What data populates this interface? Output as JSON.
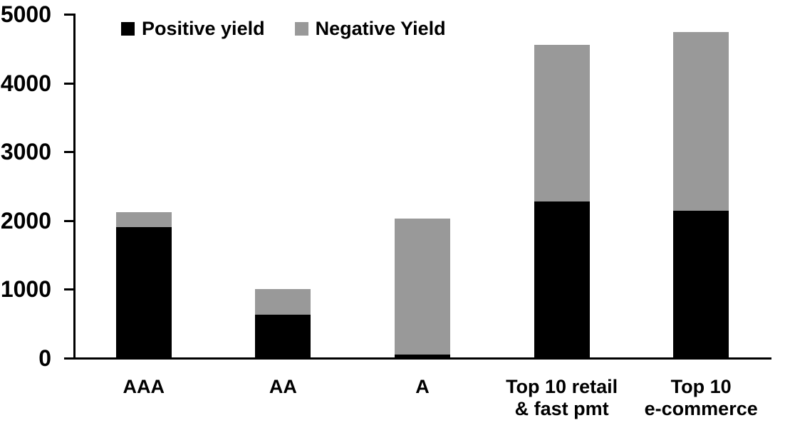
{
  "chart_data": {
    "type": "bar",
    "stacked": true,
    "title": "",
    "xlabel": "",
    "ylabel": "",
    "categories": [
      "AAA",
      "AA",
      "A",
      "Top 10 retail\n& fast pmt",
      "Top 10\ne-commerce"
    ],
    "series": [
      {
        "name": "Positive yield",
        "color": "#000000",
        "values": [
          1900,
          630,
          50,
          2280,
          2140
        ]
      },
      {
        "name": "Negative Yield",
        "color": "#999999",
        "values": [
          220,
          370,
          1980,
          2270,
          2600
        ]
      }
    ],
    "totals": [
      2120,
      1000,
      2030,
      4550,
      4740
    ],
    "ylim": [
      0,
      5000
    ],
    "yticks": [
      0,
      1000,
      2000,
      3000,
      4000,
      5000
    ],
    "grid": false,
    "legend_position": "top"
  },
  "colors": {
    "axis": "#000000",
    "text": "#000000",
    "background": "#ffffff"
  }
}
